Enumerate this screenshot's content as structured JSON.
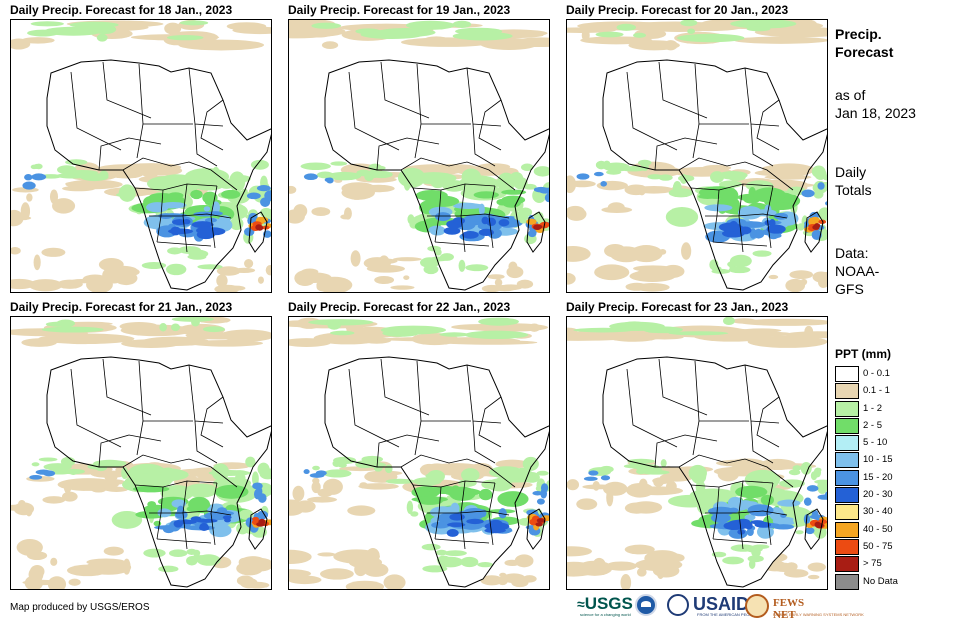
{
  "panels": [
    {
      "title": "Daily Precip. Forecast for 18 Jan., 2023",
      "day": 18
    },
    {
      "title": "Daily Precip. Forecast for 19 Jan., 2023",
      "day": 19
    },
    {
      "title": "Daily Precip. Forecast for 20 Jan., 2023",
      "day": 20
    },
    {
      "title": "Daily Precip. Forecast for 21 Jan., 2023",
      "day": 21
    },
    {
      "title": "Daily Precip. Forecast for 22 Jan., 2023",
      "day": 22
    },
    {
      "title": "Daily Precip. Forecast for 23 Jan., 2023",
      "day": 23
    }
  ],
  "side": {
    "title_line1": "Precip.",
    "title_line2": "Forecast",
    "asof_line1": "as of",
    "asof_line2": "Jan 18, 2023",
    "totals_line1": "Daily",
    "totals_line2": "Totals",
    "data_line1": "Data:",
    "data_line2": "NOAA-",
    "data_line3": "GFS"
  },
  "legend": {
    "title": "PPT (mm)",
    "items": [
      {
        "label": "0 - 0.1",
        "color": "#ffffff"
      },
      {
        "label": "0.1 - 1",
        "color": "#e8d6b2"
      },
      {
        "label": "1 - 2",
        "color": "#b7f0a5"
      },
      {
        "label": "2 - 5",
        "color": "#71dd69"
      },
      {
        "label": "5 - 10",
        "color": "#b3eef5"
      },
      {
        "label": "10 - 15",
        "color": "#7fc0ec"
      },
      {
        "label": "15 - 20",
        "color": "#4b93e2"
      },
      {
        "label": "20 - 30",
        "color": "#2461d6"
      },
      {
        "label": "30 - 40",
        "color": "#fde88a"
      },
      {
        "label": "40 - 50",
        "color": "#f5a623"
      },
      {
        "label": "50 - 75",
        "color": "#ec4b12"
      },
      {
        "label": "> 75",
        "color": "#a81d14"
      },
      {
        "label": "No Data",
        "color": "#8c8c8c"
      }
    ]
  },
  "footer": {
    "credit": "Map produced by USGS/EROS",
    "usgs": "USGS",
    "usgs_tagline": "science for a changing world",
    "usaid": "USAID",
    "usaid_tagline": "FROM THE AMERICAN PEOPLE",
    "fews": "FEWS NET",
    "fews_tagline": "FAMINE EARLY WARNING SYSTEMS NETWORK"
  },
  "colors": {
    "sand": "#e8d6b2",
    "light_green": "#b7f0a5",
    "green": "#71dd69",
    "cyan": "#b3eef5",
    "light_blue": "#7fc0ec",
    "mid_blue": "#4b93e2",
    "blue": "#2461d6",
    "yellow": "#fde88a",
    "orange": "#f5a623",
    "red": "#ec4b12",
    "dark_red": "#a81d14"
  }
}
